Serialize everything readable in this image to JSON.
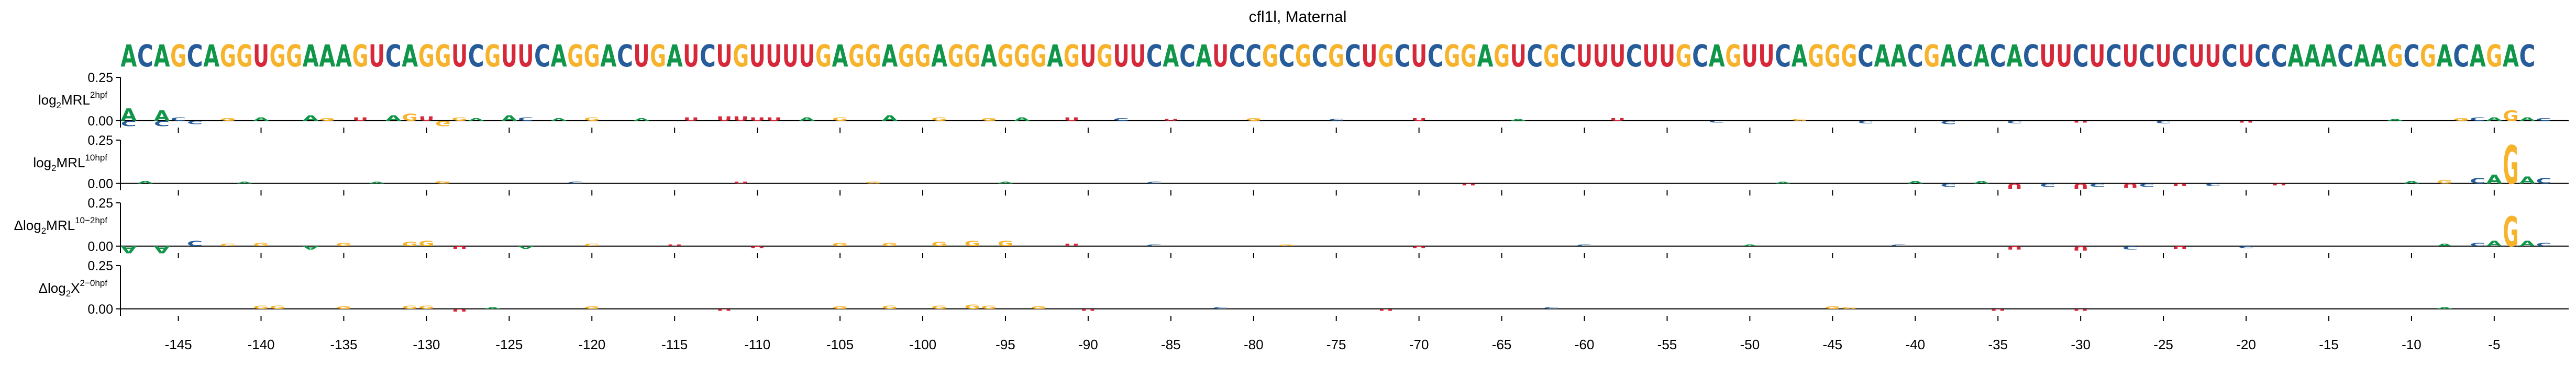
{
  "chart_data": {
    "type": "sequence-logo",
    "title": "cfl1l, Maternal",
    "sequence": "ACAGCAGGUGGAAAGUCAGGUCGUUCAGGACUGAUCUGUUUUGAGGAGGAGGAGGGAGUGUUCACAUCCGCGCGCUGCUCGGAGUCGCUUUCUUGCAGUUCAGGGCAACGACACACUUCUCUCUCUUCUCCAAACAAGCGACAGAC",
    "position_range": [
      -148,
      -1
    ],
    "xticks": [
      -145,
      -140,
      -135,
      -130,
      -125,
      -120,
      -115,
      -110,
      -105,
      -100,
      -95,
      -90,
      -85,
      -80,
      -75,
      -70,
      -65,
      -60,
      -55,
      -50,
      -45,
      -40,
      -35,
      -30,
      -25,
      -20,
      -15,
      -10,
      -5
    ],
    "xtick_labels": [
      "-145",
      "-140",
      "-135",
      "-130",
      "-125",
      "-120",
      "-115",
      "-110",
      "-105",
      "-100",
      "-95",
      "-90",
      "-85",
      "-80",
      "-75",
      "-70",
      "-65",
      "-60",
      "-55",
      "-50",
      "-45",
      "-40",
      "-35",
      "-30",
      "-25",
      "-20",
      "-15",
      "-10",
      "-5"
    ],
    "base_colors": {
      "A": "#109648",
      "C": "#255C99",
      "G": "#F7B32B",
      "U": "#D62839"
    },
    "panels": [
      {
        "ylabel_base": "log",
        "ylabel_sub": "2",
        "ylabel_main": "MRL",
        "ylabel_sup": "2hpf",
        "ylim": [
          -0.04,
          0.25
        ],
        "yticks": [
          0.0,
          0.25
        ],
        "ytick_labels": [
          "0.00",
          "0.25"
        ],
        "contributions": [
          {
            "pos": -148,
            "base": "A",
            "value": 0.07
          },
          {
            "pos": -148,
            "base": "C",
            "value": -0.03
          },
          {
            "pos": -146,
            "base": "A",
            "value": 0.06
          },
          {
            "pos": -146,
            "base": "C",
            "value": -0.03
          },
          {
            "pos": -145,
            "base": "C",
            "value": 0.02
          },
          {
            "pos": -144,
            "base": "C",
            "value": -0.02
          },
          {
            "pos": -142,
            "base": "G",
            "value": 0.015
          },
          {
            "pos": -140,
            "base": "A",
            "value": 0.02
          },
          {
            "pos": -137,
            "base": "A",
            "value": 0.03
          },
          {
            "pos": -136,
            "base": "G",
            "value": 0.015
          },
          {
            "pos": -134,
            "base": "U",
            "value": 0.02
          },
          {
            "pos": -132,
            "base": "A",
            "value": 0.03
          },
          {
            "pos": -131,
            "base": "G",
            "value": 0.04
          },
          {
            "pos": -130,
            "base": "U",
            "value": 0.025
          },
          {
            "pos": -129,
            "base": "G",
            "value": -0.03
          },
          {
            "pos": -128,
            "base": "G",
            "value": 0.02
          },
          {
            "pos": -127,
            "base": "A",
            "value": 0.015
          },
          {
            "pos": -125,
            "base": "A",
            "value": 0.03
          },
          {
            "pos": -124,
            "base": "C",
            "value": 0.02
          },
          {
            "pos": -122,
            "base": "A",
            "value": 0.015
          },
          {
            "pos": -120,
            "base": "G",
            "value": 0.02
          },
          {
            "pos": -117,
            "base": "A",
            "value": 0.015
          },
          {
            "pos": -114,
            "base": "U",
            "value": 0.02
          },
          {
            "pos": -112,
            "base": "U",
            "value": 0.025
          },
          {
            "pos": -111,
            "base": "U",
            "value": 0.025
          },
          {
            "pos": -110,
            "base": "U",
            "value": 0.02
          },
          {
            "pos": -109,
            "base": "U",
            "value": 0.02
          },
          {
            "pos": -107,
            "base": "A",
            "value": 0.02
          },
          {
            "pos": -105,
            "base": "G",
            "value": 0.02
          },
          {
            "pos": -102,
            "base": "A",
            "value": 0.03
          },
          {
            "pos": -99,
            "base": "G",
            "value": 0.02
          },
          {
            "pos": -96,
            "base": "G",
            "value": 0.015
          },
          {
            "pos": -94,
            "base": "A",
            "value": 0.02
          },
          {
            "pos": -91,
            "base": "U",
            "value": 0.02
          },
          {
            "pos": -88,
            "base": "C",
            "value": 0.015
          },
          {
            "pos": -85,
            "base": "U",
            "value": 0.01
          },
          {
            "pos": -80,
            "base": "G",
            "value": 0.015
          },
          {
            "pos": -75,
            "base": "C",
            "value": 0.01
          },
          {
            "pos": -70,
            "base": "U",
            "value": 0.015
          },
          {
            "pos": -64,
            "base": "A",
            "value": 0.01
          },
          {
            "pos": -58,
            "base": "U",
            "value": 0.015
          },
          {
            "pos": -52,
            "base": "C",
            "value": -0.01
          },
          {
            "pos": -47,
            "base": "G",
            "value": 0.01
          },
          {
            "pos": -43,
            "base": "C",
            "value": -0.015
          },
          {
            "pos": -38,
            "base": "C",
            "value": -0.02
          },
          {
            "pos": -34,
            "base": "C",
            "value": -0.015
          },
          {
            "pos": -30,
            "base": "U",
            "value": -0.01
          },
          {
            "pos": -25,
            "base": "C",
            "value": -0.015
          },
          {
            "pos": -20,
            "base": "U",
            "value": -0.01
          },
          {
            "pos": -11,
            "base": "A",
            "value": 0.01
          },
          {
            "pos": -7,
            "base": "G",
            "value": 0.015
          },
          {
            "pos": -6,
            "base": "C",
            "value": 0.02
          },
          {
            "pos": -5,
            "base": "A",
            "value": 0.02
          },
          {
            "pos": -4,
            "base": "G",
            "value": 0.06
          },
          {
            "pos": -3,
            "base": "A",
            "value": 0.02
          },
          {
            "pos": -2,
            "base": "C",
            "value": 0.015
          }
        ]
      },
      {
        "ylabel_base": "log",
        "ylabel_sub": "2",
        "ylabel_main": "MRL",
        "ylabel_sup": "10hpf",
        "ylim": [
          -0.04,
          0.25
        ],
        "yticks": [
          0.0,
          0.25
        ],
        "ytick_labels": [
          "0.00",
          "0.25"
        ],
        "contributions": [
          {
            "pos": -147,
            "base": "A",
            "value": 0.015
          },
          {
            "pos": -141,
            "base": "A",
            "value": 0.01
          },
          {
            "pos": -133,
            "base": "A",
            "value": 0.01
          },
          {
            "pos": -129,
            "base": "G",
            "value": 0.015
          },
          {
            "pos": -121,
            "base": "C",
            "value": 0.01
          },
          {
            "pos": -111,
            "base": "U",
            "value": 0.01
          },
          {
            "pos": -103,
            "base": "G",
            "value": 0.01
          },
          {
            "pos": -95,
            "base": "A",
            "value": 0.01
          },
          {
            "pos": -86,
            "base": "C",
            "value": 0.01
          },
          {
            "pos": -67,
            "base": "U",
            "value": -0.01
          },
          {
            "pos": -48,
            "base": "A",
            "value": 0.01
          },
          {
            "pos": -40,
            "base": "A",
            "value": 0.015
          },
          {
            "pos": -38,
            "base": "C",
            "value": -0.02
          },
          {
            "pos": -36,
            "base": "A",
            "value": 0.015
          },
          {
            "pos": -34,
            "base": "U",
            "value": -0.03
          },
          {
            "pos": -32,
            "base": "C",
            "value": -0.02
          },
          {
            "pos": -30,
            "base": "U",
            "value": -0.03
          },
          {
            "pos": -29,
            "base": "C",
            "value": -0.02
          },
          {
            "pos": -27,
            "base": "U",
            "value": -0.025
          },
          {
            "pos": -26,
            "base": "C",
            "value": -0.02
          },
          {
            "pos": -24,
            "base": "U",
            "value": -0.015
          },
          {
            "pos": -22,
            "base": "C",
            "value": -0.015
          },
          {
            "pos": -18,
            "base": "U",
            "value": -0.01
          },
          {
            "pos": -10,
            "base": "A",
            "value": 0.015
          },
          {
            "pos": -8,
            "base": "G",
            "value": 0.02
          },
          {
            "pos": -6,
            "base": "C",
            "value": 0.03
          },
          {
            "pos": -5,
            "base": "A",
            "value": 0.05
          },
          {
            "pos": -4,
            "base": "G",
            "value": 0.22
          },
          {
            "pos": -3,
            "base": "A",
            "value": 0.04
          },
          {
            "pos": -2,
            "base": "C",
            "value": 0.03
          }
        ]
      },
      {
        "ylabel_base": "Δlog",
        "ylabel_sub": "2",
        "ylabel_main": "MRL",
        "ylabel_sup": "10−2hpf",
        "ylim": [
          -0.04,
          0.25
        ],
        "yticks": [
          0.0,
          0.25
        ],
        "ytick_labels": [
          "0.00",
          "0.25"
        ],
        "contributions": [
          {
            "pos": -148,
            "base": "A",
            "value": -0.04
          },
          {
            "pos": -146,
            "base": "A",
            "value": -0.04
          },
          {
            "pos": -144,
            "base": "C",
            "value": 0.03
          },
          {
            "pos": -142,
            "base": "G",
            "value": 0.015
          },
          {
            "pos": -140,
            "base": "G",
            "value": 0.02
          },
          {
            "pos": -137,
            "base": "A",
            "value": -0.02
          },
          {
            "pos": -135,
            "base": "G",
            "value": 0.02
          },
          {
            "pos": -131,
            "base": "G",
            "value": 0.025
          },
          {
            "pos": -130,
            "base": "G",
            "value": 0.03
          },
          {
            "pos": -128,
            "base": "U",
            "value": -0.015
          },
          {
            "pos": -124,
            "base": "A",
            "value": -0.015
          },
          {
            "pos": -120,
            "base": "G",
            "value": 0.015
          },
          {
            "pos": -115,
            "base": "U",
            "value": 0.01
          },
          {
            "pos": -110,
            "base": "U",
            "value": -0.01
          },
          {
            "pos": -105,
            "base": "G",
            "value": 0.02
          },
          {
            "pos": -102,
            "base": "G",
            "value": 0.02
          },
          {
            "pos": -99,
            "base": "G",
            "value": 0.025
          },
          {
            "pos": -97,
            "base": "G",
            "value": 0.03
          },
          {
            "pos": -95,
            "base": "G",
            "value": 0.03
          },
          {
            "pos": -91,
            "base": "U",
            "value": 0.015
          },
          {
            "pos": -86,
            "base": "C",
            "value": 0.01
          },
          {
            "pos": -78,
            "base": "G",
            "value": 0.01
          },
          {
            "pos": -70,
            "base": "U",
            "value": -0.01
          },
          {
            "pos": -60,
            "base": "C",
            "value": 0.01
          },
          {
            "pos": -50,
            "base": "A",
            "value": 0.01
          },
          {
            "pos": -41,
            "base": "C",
            "value": 0.01
          },
          {
            "pos": -34,
            "base": "U",
            "value": -0.02
          },
          {
            "pos": -30,
            "base": "U",
            "value": -0.025
          },
          {
            "pos": -27,
            "base": "C",
            "value": -0.02
          },
          {
            "pos": -24,
            "base": "U",
            "value": -0.015
          },
          {
            "pos": -20,
            "base": "C",
            "value": -0.01
          },
          {
            "pos": -8,
            "base": "A",
            "value": 0.015
          },
          {
            "pos": -6,
            "base": "C",
            "value": 0.02
          },
          {
            "pos": -5,
            "base": "A",
            "value": 0.03
          },
          {
            "pos": -4,
            "base": "G",
            "value": 0.17
          },
          {
            "pos": -3,
            "base": "A",
            "value": 0.03
          },
          {
            "pos": -2,
            "base": "C",
            "value": 0.02
          }
        ]
      },
      {
        "ylabel_base": "Δlog",
        "ylabel_sub": "2",
        "ylabel_main": "X",
        "ylabel_sup": "2−0hpf",
        "ylim": [
          -0.04,
          0.25
        ],
        "yticks": [
          0.0,
          0.25
        ],
        "ytick_labels": [
          "0.00",
          "0.25"
        ],
        "contributions": [
          {
            "pos": -140,
            "base": "G",
            "value": 0.02
          },
          {
            "pos": -139,
            "base": "G",
            "value": 0.02
          },
          {
            "pos": -135,
            "base": "G",
            "value": 0.015
          },
          {
            "pos": -131,
            "base": "G",
            "value": 0.02
          },
          {
            "pos": -130,
            "base": "G",
            "value": 0.02
          },
          {
            "pos": -128,
            "base": "U",
            "value": -0.015
          },
          {
            "pos": -126,
            "base": "A",
            "value": 0.01
          },
          {
            "pos": -120,
            "base": "G",
            "value": 0.015
          },
          {
            "pos": -112,
            "base": "U",
            "value": -0.01
          },
          {
            "pos": -105,
            "base": "G",
            "value": 0.015
          },
          {
            "pos": -102,
            "base": "G",
            "value": 0.02
          },
          {
            "pos": -99,
            "base": "G",
            "value": 0.02
          },
          {
            "pos": -97,
            "base": "G",
            "value": 0.025
          },
          {
            "pos": -96,
            "base": "G",
            "value": 0.02
          },
          {
            "pos": -93,
            "base": "G",
            "value": 0.015
          },
          {
            "pos": -90,
            "base": "U",
            "value": -0.01
          },
          {
            "pos": -82,
            "base": "C",
            "value": 0.01
          },
          {
            "pos": -72,
            "base": "U",
            "value": -0.01
          },
          {
            "pos": -62,
            "base": "C",
            "value": 0.01
          },
          {
            "pos": -45,
            "base": "G",
            "value": 0.015
          },
          {
            "pos": -44,
            "base": "G",
            "value": 0.01
          },
          {
            "pos": -35,
            "base": "U",
            "value": -0.01
          },
          {
            "pos": -30,
            "base": "U",
            "value": -0.01
          },
          {
            "pos": -8,
            "base": "A",
            "value": 0.01
          }
        ]
      }
    ]
  }
}
